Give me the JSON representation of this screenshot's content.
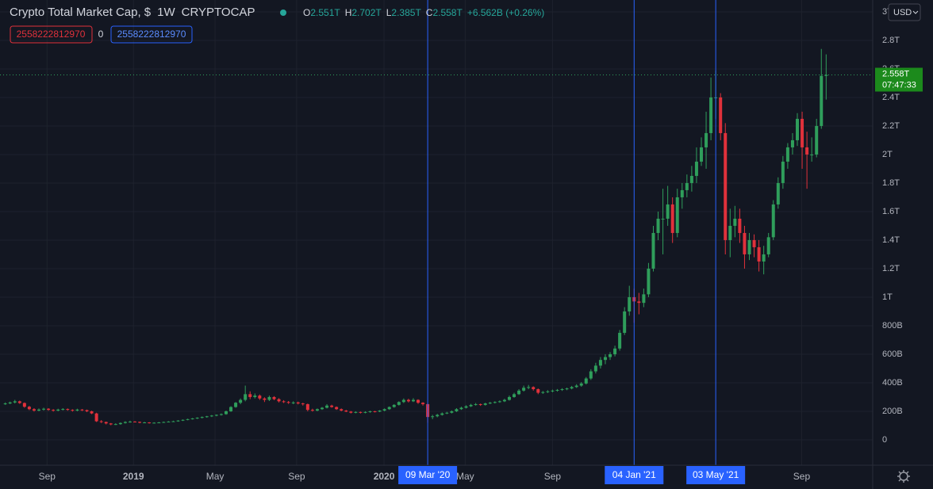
{
  "chart_data": {
    "type": "candlestick",
    "title": "Crypto Total Market Cap, $",
    "interval": "1W",
    "symbol": "CRYPTOCAP",
    "ohlc_legend": [
      {
        "label": "O",
        "value": "2.551T"
      },
      {
        "label": "H",
        "value": "2.702T"
      },
      {
        "label": "L",
        "value": "2.385T"
      },
      {
        "label": "C",
        "value": "2.558T"
      }
    ],
    "change": "+6.562B (+0.26%)",
    "indicator": {
      "upper": "2558222812970",
      "middle": "0",
      "lower": "2558222812970"
    },
    "currency": "USD",
    "last_price_label": "2.558T",
    "countdown": "07:47:33",
    "last_price": 2558,
    "up_color": "#2f9e5b",
    "down_color": "#e0313b",
    "grid": true,
    "ylim": [
      -178,
      3083
    ],
    "yticks": [
      {
        "value": 0,
        "label": "0"
      },
      {
        "value": 200,
        "label": "200B"
      },
      {
        "value": 400,
        "label": "400B"
      },
      {
        "value": 600,
        "label": "600B"
      },
      {
        "value": 800,
        "label": "800B"
      },
      {
        "value": 1000,
        "label": "1T"
      },
      {
        "value": 1200,
        "label": "1.2T"
      },
      {
        "value": 1400,
        "label": "1.4T"
      },
      {
        "value": 1600,
        "label": "1.6T"
      },
      {
        "value": 1800,
        "label": "1.8T"
      },
      {
        "value": 2000,
        "label": "2T"
      },
      {
        "value": 2200,
        "label": "2.2T"
      },
      {
        "value": 2400,
        "label": "2.4T"
      },
      {
        "value": 2600,
        "label": "2.6T"
      },
      {
        "value": 2800,
        "label": "2.8T"
      },
      {
        "value": 3000,
        "label": "3T"
      }
    ],
    "xlim": [
      -1.1,
      180.7
    ],
    "xticks": [
      {
        "value": 8.7,
        "label": "Sep"
      },
      {
        "value": 26.7,
        "label": "2019"
      },
      {
        "value": 43.7,
        "label": "May"
      },
      {
        "value": 60.7,
        "label": "Sep"
      },
      {
        "value": 78.9,
        "label": "2020"
      },
      {
        "value": 95.8,
        "label": "May"
      },
      {
        "value": 114,
        "label": "Sep"
      },
      {
        "value": 165.9,
        "label": "Sep"
      }
    ],
    "markers": [
      {
        "index": 88,
        "label": "09 Mar '20"
      },
      {
        "index": 131,
        "label": "04 Jan '21"
      },
      {
        "index": 148,
        "label": "03 May '21"
      }
    ],
    "candles": [
      [
        250,
        262,
        245,
        255
      ],
      [
        255,
        268,
        250,
        262
      ],
      [
        262,
        280,
        255,
        270
      ],
      [
        270,
        275,
        252,
        258
      ],
      [
        258,
        262,
        225,
        232
      ],
      [
        232,
        238,
        208,
        215
      ],
      [
        215,
        222,
        198,
        205
      ],
      [
        205,
        220,
        200,
        212
      ],
      [
        212,
        225,
        205,
        218
      ],
      [
        218,
        222,
        204,
        210
      ],
      [
        210,
        215,
        198,
        205
      ],
      [
        205,
        218,
        200,
        212
      ],
      [
        212,
        222,
        206,
        216
      ],
      [
        216,
        220,
        204,
        210
      ],
      [
        210,
        214,
        198,
        205
      ],
      [
        205,
        218,
        200,
        212
      ],
      [
        212,
        216,
        202,
        208
      ],
      [
        208,
        212,
        194,
        200
      ],
      [
        200,
        204,
        180,
        185
      ],
      [
        185,
        190,
        125,
        130
      ],
      [
        130,
        138,
        118,
        125
      ],
      [
        125,
        128,
        108,
        115
      ],
      [
        115,
        118,
        102,
        108
      ],
      [
        108,
        116,
        104,
        110
      ],
      [
        110,
        122,
        106,
        118
      ],
      [
        118,
        130,
        114,
        125
      ],
      [
        125,
        134,
        120,
        128
      ],
      [
        128,
        131,
        122,
        126
      ],
      [
        126,
        128,
        116,
        120
      ],
      [
        120,
        126,
        117,
        122
      ],
      [
        122,
        124,
        114,
        118
      ],
      [
        118,
        123,
        115,
        120
      ],
      [
        120,
        125,
        117,
        122
      ],
      [
        122,
        128,
        119,
        125
      ],
      [
        125,
        131,
        122,
        128
      ],
      [
        128,
        134,
        125,
        130
      ],
      [
        130,
        138,
        127,
        135
      ],
      [
        135,
        143,
        132,
        140
      ],
      [
        140,
        148,
        137,
        145
      ],
      [
        145,
        153,
        142,
        150
      ],
      [
        150,
        158,
        146,
        155
      ],
      [
        155,
        164,
        150,
        160
      ],
      [
        160,
        168,
        155,
        165
      ],
      [
        165,
        174,
        160,
        170
      ],
      [
        170,
        178,
        165,
        175
      ],
      [
        175,
        185,
        170,
        180
      ],
      [
        180,
        205,
        176,
        200
      ],
      [
        200,
        236,
        196,
        230
      ],
      [
        230,
        265,
        225,
        260
      ],
      [
        260,
        290,
        250,
        280
      ],
      [
        280,
        380,
        270,
        320
      ],
      [
        320,
        340,
        285,
        300
      ],
      [
        300,
        325,
        290,
        310
      ],
      [
        310,
        318,
        280,
        290
      ],
      [
        290,
        298,
        265,
        280
      ],
      [
        280,
        310,
        272,
        300
      ],
      [
        300,
        306,
        278,
        285
      ],
      [
        285,
        292,
        262,
        270
      ],
      [
        270,
        278,
        258,
        265
      ],
      [
        265,
        272,
        252,
        260
      ],
      [
        260,
        270,
        250,
        262
      ],
      [
        262,
        268,
        248,
        255
      ],
      [
        255,
        260,
        240,
        250
      ],
      [
        250,
        254,
        200,
        210
      ],
      [
        210,
        218,
        198,
        205
      ],
      [
        205,
        220,
        200,
        215
      ],
      [
        215,
        230,
        210,
        225
      ],
      [
        225,
        250,
        220,
        240
      ],
      [
        240,
        246,
        225,
        230
      ],
      [
        230,
        234,
        210,
        215
      ],
      [
        215,
        220,
        200,
        205
      ],
      [
        205,
        210,
        194,
        198
      ],
      [
        198,
        202,
        185,
        190
      ],
      [
        190,
        200,
        186,
        195
      ],
      [
        195,
        198,
        185,
        190
      ],
      [
        190,
        200,
        186,
        195
      ],
      [
        195,
        204,
        190,
        200
      ],
      [
        200,
        203,
        192,
        198
      ],
      [
        198,
        208,
        194,
        205
      ],
      [
        205,
        220,
        200,
        215
      ],
      [
        215,
        234,
        210,
        230
      ],
      [
        230,
        250,
        225,
        245
      ],
      [
        245,
        270,
        240,
        265
      ],
      [
        265,
        290,
        258,
        280
      ],
      [
        280,
        288,
        262,
        270
      ],
      [
        270,
        292,
        265,
        280
      ],
      [
        280,
        284,
        252,
        260
      ],
      [
        260,
        264,
        240,
        250
      ],
      [
        250,
        254,
        120,
        160
      ],
      [
        160,
        175,
        145,
        165
      ],
      [
        165,
        182,
        158,
        175
      ],
      [
        175,
        192,
        170,
        185
      ],
      [
        185,
        196,
        180,
        190
      ],
      [
        190,
        206,
        185,
        200
      ],
      [
        200,
        222,
        195,
        215
      ],
      [
        215,
        232,
        210,
        225
      ],
      [
        225,
        242,
        220,
        235
      ],
      [
        235,
        252,
        230,
        245
      ],
      [
        245,
        258,
        240,
        250
      ],
      [
        250,
        254,
        238,
        245
      ],
      [
        245,
        260,
        240,
        255
      ],
      [
        255,
        266,
        250,
        260
      ],
      [
        260,
        270,
        255,
        265
      ],
      [
        265,
        276,
        260,
        270
      ],
      [
        270,
        288,
        265,
        280
      ],
      [
        280,
        310,
        275,
        300
      ],
      [
        300,
        330,
        295,
        320
      ],
      [
        320,
        355,
        315,
        345
      ],
      [
        345,
        380,
        338,
        365
      ],
      [
        365,
        385,
        355,
        370
      ],
      [
        370,
        375,
        345,
        355
      ],
      [
        355,
        360,
        320,
        330
      ],
      [
        330,
        342,
        322,
        335
      ],
      [
        335,
        348,
        328,
        340
      ],
      [
        340,
        352,
        333,
        345
      ],
      [
        345,
        356,
        338,
        350
      ],
      [
        350,
        362,
        343,
        355
      ],
      [
        355,
        366,
        348,
        360
      ],
      [
        360,
        378,
        354,
        370
      ],
      [
        370,
        390,
        364,
        380
      ],
      [
        380,
        405,
        372,
        395
      ],
      [
        395,
        440,
        388,
        430
      ],
      [
        430,
        495,
        420,
        480
      ],
      [
        480,
        540,
        465,
        520
      ],
      [
        520,
        580,
        500,
        560
      ],
      [
        560,
        600,
        530,
        580
      ],
      [
        580,
        615,
        560,
        600
      ],
      [
        600,
        660,
        585,
        640
      ],
      [
        640,
        770,
        625,
        750
      ],
      [
        750,
        930,
        735,
        900
      ],
      [
        900,
        1080,
        870,
        1000
      ],
      [
        1000,
        1060,
        820,
        970
      ],
      [
        970,
        1030,
        880,
        960
      ],
      [
        960,
        1060,
        930,
        1020
      ],
      [
        1020,
        1240,
        1000,
        1200
      ],
      [
        1200,
        1500,
        1180,
        1450
      ],
      [
        1450,
        1600,
        1400,
        1550
      ],
      [
        1550,
        1760,
        1300,
        1550
      ],
      [
        1550,
        1780,
        1500,
        1650
      ],
      [
        1650,
        1700,
        1380,
        1450
      ],
      [
        1450,
        1760,
        1420,
        1700
      ],
      [
        1700,
        1800,
        1620,
        1750
      ],
      [
        1750,
        1860,
        1700,
        1800
      ],
      [
        1800,
        1920,
        1740,
        1850
      ],
      [
        1850,
        2050,
        1800,
        1950
      ],
      [
        1950,
        2120,
        1920,
        2050
      ],
      [
        2050,
        2300,
        1900,
        2150
      ],
      [
        2150,
        2540,
        2100,
        2400
      ],
      [
        2400,
        2590,
        2250,
        2400
      ],
      [
        2400,
        2430,
        2100,
        2150
      ],
      [
        2150,
        2220,
        1300,
        1400
      ],
      [
        1400,
        1620,
        1280,
        1500
      ],
      [
        1500,
        1640,
        1420,
        1550
      ],
      [
        1550,
        1620,
        1380,
        1450
      ],
      [
        1450,
        1500,
        1200,
        1300
      ],
      [
        1300,
        1450,
        1260,
        1400
      ],
      [
        1400,
        1440,
        1280,
        1350
      ],
      [
        1350,
        1400,
        1180,
        1250
      ],
      [
        1250,
        1360,
        1160,
        1300
      ],
      [
        1300,
        1450,
        1280,
        1420
      ],
      [
        1420,
        1680,
        1400,
        1650
      ],
      [
        1650,
        1840,
        1620,
        1800
      ],
      [
        1800,
        1990,
        1760,
        1950
      ],
      [
        1950,
        2080,
        1900,
        2050
      ],
      [
        2050,
        2150,
        2000,
        2100
      ],
      [
        2100,
        2290,
        2060,
        2250
      ],
      [
        2250,
        2300,
        1900,
        2050
      ],
      [
        2050,
        2160,
        1760,
        2000
      ],
      [
        2000,
        2120,
        1950,
        2000
      ],
      [
        2000,
        2250,
        1980,
        2200
      ],
      [
        2200,
        2740,
        2180,
        2551
      ],
      [
        2551,
        2702,
        2385,
        2558
      ]
    ]
  }
}
